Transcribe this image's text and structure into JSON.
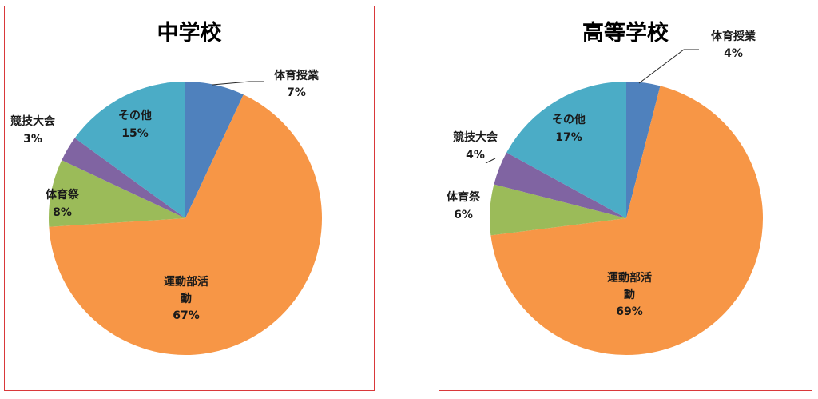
{
  "chart_data": [
    {
      "type": "pie",
      "title": "中学校",
      "categories": [
        "体育授業",
        "運動部活動",
        "体育祭",
        "競技大会",
        "その他"
      ],
      "values": [
        7,
        67,
        8,
        3,
        15
      ],
      "value_labels": [
        "7%",
        "67%",
        "8%",
        "3%",
        "15%"
      ],
      "colors": [
        "#4f81bd",
        "#f79646",
        "#9bbb59",
        "#8064a2",
        "#4bacc6"
      ],
      "start_angle_deg": 0,
      "direction": "clockwise",
      "legend": "none"
    },
    {
      "type": "pie",
      "title": "高等学校",
      "categories": [
        "体育授業",
        "運動部活動",
        "体育祭",
        "競技大会",
        "その他"
      ],
      "values": [
        4,
        69,
        6,
        4,
        17
      ],
      "value_labels": [
        "4%",
        "69%",
        "6%",
        "4%",
        "17%"
      ],
      "colors": [
        "#4f81bd",
        "#f79646",
        "#9bbb59",
        "#8064a2",
        "#4bacc6"
      ],
      "start_angle_deg": 0,
      "direction": "clockwise",
      "legend": "none"
    }
  ]
}
